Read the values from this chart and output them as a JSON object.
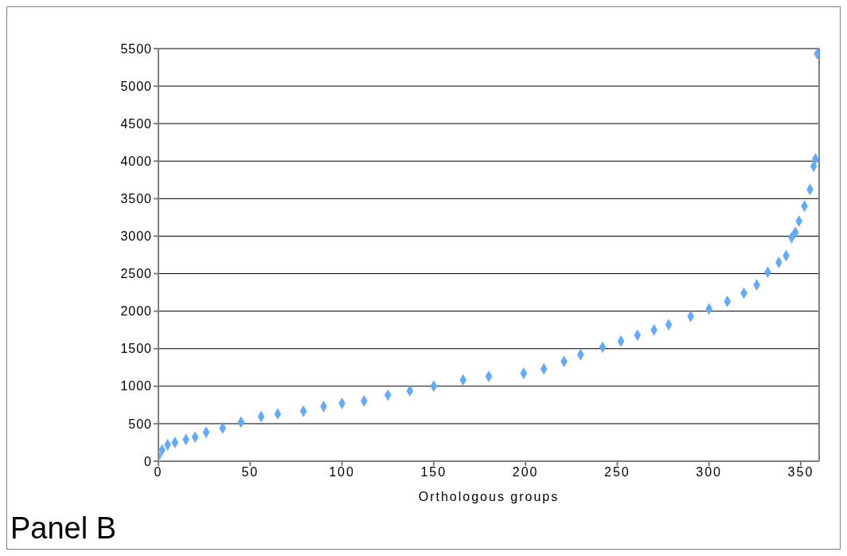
{
  "chart_data": {
    "type": "scatter",
    "xlabel": "Orthologous groups",
    "annotations": [
      "Panel B"
    ],
    "x": [
      0,
      2,
      5,
      9,
      15,
      20,
      26,
      35,
      45,
      56,
      65,
      79,
      90,
      100,
      112,
      125,
      137,
      150,
      166,
      180,
      199,
      210,
      221,
      230,
      242,
      252,
      261,
      270,
      278,
      290,
      300,
      310,
      319,
      326,
      332,
      338,
      342,
      345,
      347,
      349,
      352,
      355,
      357,
      358,
      359
    ],
    "series": [
      {
        "color": "#63aaff",
        "values": [
          70,
          150,
          220,
          250,
          290,
          320,
          385,
          440,
          520,
          595,
          630,
          667,
          730,
          770,
          802,
          880,
          938,
          1000,
          1084,
          1130,
          1170,
          1230,
          1330,
          1420,
          1520,
          1600,
          1680,
          1750,
          1820,
          1930,
          2030,
          2130,
          2240,
          2350,
          2520,
          2650,
          2740,
          2980,
          3050,
          3200,
          3400,
          3620,
          3930,
          4030,
          5430
        ]
      }
    ],
    "xlim": [
      0,
      360
    ],
    "xticks": [
      0,
      50,
      100,
      150,
      200,
      250,
      300,
      350
    ],
    "ylim": [
      0,
      5500
    ],
    "yticks": [
      0,
      500,
      1000,
      1500,
      2000,
      2500,
      3000,
      3500,
      4000,
      4500,
      5000,
      5500
    ],
    "grid": "y",
    "marker": "diamond",
    "legend": false
  }
}
